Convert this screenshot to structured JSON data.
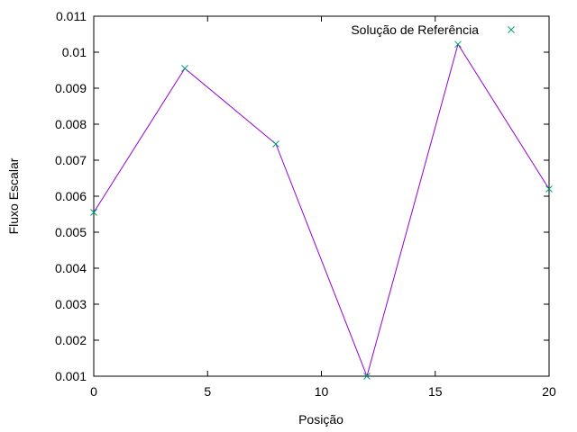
{
  "chart_data": {
    "type": "line",
    "xlabel": "Posição",
    "ylabel": "Fluxo Escalar",
    "xlim": [
      0,
      20
    ],
    "ylim": [
      0.001,
      0.011
    ],
    "xticks": [
      0,
      5,
      10,
      15,
      20
    ],
    "yticks": [
      0.001,
      0.002,
      0.003,
      0.004,
      0.005,
      0.006,
      0.007,
      0.008,
      0.009,
      0.01,
      0.011
    ],
    "xtick_labels": [
      "0",
      "5",
      "10",
      "15",
      "20"
    ],
    "ytick_labels": [
      "0.001",
      "0.002",
      "0.003",
      "0.004",
      "0.005",
      "0.006",
      "0.007",
      "0.008",
      "0.009",
      "0.01",
      "0.011"
    ],
    "grid": false,
    "legend_position": "top-right",
    "series": [
      {
        "name": "",
        "type": "line",
        "color": "#9400d3",
        "x": [
          0,
          4,
          8,
          12,
          16,
          20
        ],
        "y": [
          0.00555,
          0.00955,
          0.00745,
          0.001,
          0.01022,
          0.0062
        ]
      },
      {
        "name": "Solução de Referência",
        "type": "scatter",
        "marker": "cross-x",
        "color": "#009e73",
        "x": [
          0,
          4,
          8,
          12,
          16,
          20
        ],
        "y": [
          0.00555,
          0.00955,
          0.00745,
          0.001,
          0.01022,
          0.0062
        ]
      }
    ]
  }
}
